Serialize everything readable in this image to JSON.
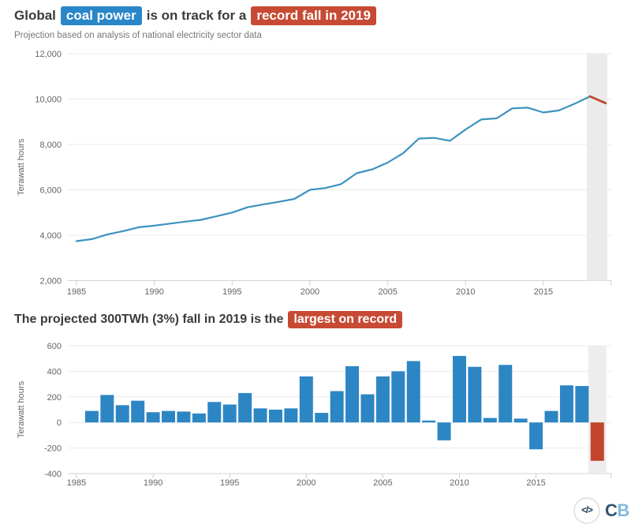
{
  "header": {
    "title_prefix": "Global",
    "badge_blue": "coal power",
    "title_middle": "is on track for a",
    "badge_red": "record fall in 2019",
    "subtitle": "Projection based on analysis of national electricity sector data"
  },
  "section2": {
    "title_prefix": "The projected 300TWh (3%) fall in 2019 is the",
    "badge_red": "largest on record"
  },
  "colors": {
    "accent_blue": "#2986c8",
    "accent_red": "#c74a34",
    "title_text": "#3b3b3b",
    "gridline": "#ebebeb",
    "axis_line": "#d3d3d3",
    "highlight_band": "#ebebeb",
    "logo_code_icon": "#1d3a53",
    "logo_c": "#33536f",
    "logo_b": "#85b8dc"
  },
  "footer": {
    "code_glyph": "</>",
    "logo_c": "C",
    "logo_b": "B"
  },
  "chart_data": [
    {
      "type": "line",
      "title": "Global coal power is on track for a record fall in 2019",
      "subtitle": "Projection based on analysis of national electricity sector data",
      "xlabel": "",
      "ylabel": "Terawatt hours",
      "ylim": [
        2000,
        12000
      ],
      "yticks": [
        12000,
        10000,
        8000,
        6000,
        4000,
        2000
      ],
      "xticks": [
        1985,
        1990,
        1995,
        2000,
        2005,
        2010,
        2015
      ],
      "grid": true,
      "legend": false,
      "line_color": "#3d92c0",
      "x": [
        1985,
        1986,
        1987,
        1988,
        1989,
        1990,
        1991,
        1992,
        1993,
        1994,
        1995,
        1996,
        1997,
        1998,
        1999,
        2000,
        2001,
        2002,
        2003,
        2004,
        2005,
        2006,
        2007,
        2008,
        2009,
        2010,
        2011,
        2012,
        2013,
        2014,
        2015,
        2016,
        2017,
        2018,
        2019
      ],
      "values": [
        3740,
        3830,
        4040,
        4180,
        4350,
        4420,
        4510,
        4600,
        4680,
        4840,
        5000,
        5230,
        5360,
        5470,
        5600,
        6000,
        6080,
        6250,
        6730,
        6900,
        7200,
        7620,
        8260,
        8290,
        8160,
        8660,
        9100,
        9150,
        9590,
        9620,
        9410,
        9500,
        9790,
        10120,
        9820
      ],
      "projection": {
        "start_year": 2018,
        "end_year": 2019,
        "color": "#c0462f"
      },
      "highlight_band": {
        "from_year": 2018,
        "to_year": 2019,
        "color": "#ebebeb"
      }
    },
    {
      "type": "bar",
      "title": "The projected 300TWh (3%) fall in 2019 is the largest on record",
      "xlabel": "",
      "ylabel": "Terawatt hours",
      "ylim": [
        -400,
        600
      ],
      "yticks": [
        600,
        400,
        200,
        0,
        -200,
        -400
      ],
      "xticks": [
        1985,
        1990,
        1995,
        2000,
        2005,
        2010,
        2015
      ],
      "grid": true,
      "legend": false,
      "bar_color": "#2d86c4",
      "x": [
        1986,
        1987,
        1988,
        1989,
        1990,
        1991,
        1992,
        1993,
        1994,
        1995,
        1996,
        1997,
        1998,
        1999,
        2000,
        2001,
        2002,
        2003,
        2004,
        2005,
        2006,
        2007,
        2008,
        2009,
        2010,
        2011,
        2012,
        2013,
        2014,
        2015,
        2016,
        2017,
        2018,
        2019
      ],
      "values": [
        90,
        215,
        135,
        170,
        80,
        90,
        85,
        70,
        160,
        140,
        230,
        110,
        100,
        110,
        360,
        75,
        245,
        440,
        220,
        360,
        400,
        480,
        15,
        -140,
        520,
        435,
        35,
        450,
        30,
        -210,
        90,
        290,
        285,
        -300
      ],
      "highlight_bar": {
        "year": 2019,
        "value": -300,
        "color": "#c0452c"
      },
      "highlight_band": {
        "from_year": 2019,
        "to_year": 2019,
        "color": "#eeecec"
      }
    }
  ]
}
